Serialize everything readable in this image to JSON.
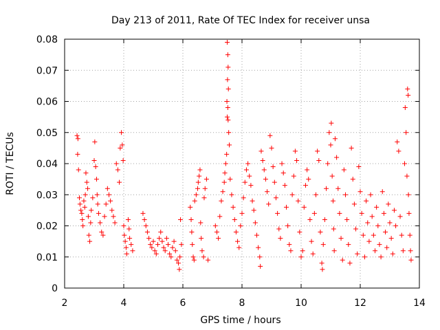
{
  "chart_data": {
    "type": "scatter",
    "title": "Day 213 of 2011, Rate Of TEC Index for receiver unsa",
    "xlabel": "GPS time / hours",
    "ylabel": "ROTI / TECUs",
    "xlim": [
      2,
      14
    ],
    "ylim": [
      0,
      0.08
    ],
    "xticks": [
      2,
      4,
      6,
      8,
      10,
      12,
      14
    ],
    "xtick_labels": [
      "2",
      "4",
      "6",
      "8",
      "10",
      "12",
      "14"
    ],
    "yticks": [
      0,
      0.01,
      0.02,
      0.03,
      0.04,
      0.05,
      0.06,
      0.07,
      0.08
    ],
    "ytick_labels": [
      "0",
      "0.01",
      "0.02",
      "0.03",
      "0.04",
      "0.05",
      "0.06",
      "0.07",
      "0.08"
    ],
    "grid": true,
    "marker": "+",
    "color": "#ff0000",
    "series": [
      {
        "name": "ROTI",
        "points": [
          [
            2.42,
            0.049
          ],
          [
            2.45,
            0.048
          ],
          [
            2.44,
            0.043
          ],
          [
            2.47,
            0.038
          ],
          [
            2.5,
            0.029
          ],
          [
            2.52,
            0.027
          ],
          [
            2.55,
            0.025
          ],
          [
            2.58,
            0.024
          ],
          [
            2.6,
            0.022
          ],
          [
            2.62,
            0.02
          ],
          [
            2.65,
            0.028
          ],
          [
            2.68,
            0.026
          ],
          [
            2.7,
            0.03
          ],
          [
            2.72,
            0.037
          ],
          [
            2.75,
            0.034
          ],
          [
            2.78,
            0.032
          ],
          [
            2.8,
            0.023
          ],
          [
            2.82,
            0.017
          ],
          [
            2.85,
            0.015
          ],
          [
            2.88,
            0.021
          ],
          [
            2.9,
            0.025
          ],
          [
            2.95,
            0.029
          ],
          [
            3.0,
            0.041
          ],
          [
            3.02,
            0.047
          ],
          [
            3.05,
            0.039
          ],
          [
            3.08,
            0.035
          ],
          [
            3.1,
            0.03
          ],
          [
            3.12,
            0.027
          ],
          [
            3.15,
            0.024
          ],
          [
            3.2,
            0.021
          ],
          [
            3.25,
            0.018
          ],
          [
            3.3,
            0.017
          ],
          [
            3.35,
            0.023
          ],
          [
            3.4,
            0.027
          ],
          [
            3.45,
            0.032
          ],
          [
            3.5,
            0.03
          ],
          [
            3.55,
            0.028
          ],
          [
            3.6,
            0.025
          ],
          [
            3.65,
            0.023
          ],
          [
            3.7,
            0.021
          ],
          [
            3.75,
            0.04
          ],
          [
            3.8,
            0.038
          ],
          [
            3.85,
            0.034
          ],
          [
            3.88,
            0.045
          ],
          [
            3.92,
            0.05
          ],
          [
            3.95,
            0.046
          ],
          [
            3.98,
            0.041
          ],
          [
            4.0,
            0.02
          ],
          [
            4.02,
            0.017
          ],
          [
            4.05,
            0.015
          ],
          [
            4.08,
            0.013
          ],
          [
            4.1,
            0.011
          ],
          [
            4.15,
            0.022
          ],
          [
            4.18,
            0.019
          ],
          [
            4.2,
            0.016
          ],
          [
            4.25,
            0.014
          ],
          [
            4.3,
            0.012
          ],
          [
            4.65,
            0.024
          ],
          [
            4.7,
            0.022
          ],
          [
            4.75,
            0.02
          ],
          [
            4.8,
            0.018
          ],
          [
            4.85,
            0.016
          ],
          [
            4.9,
            0.014
          ],
          [
            4.95,
            0.013
          ],
          [
            5.0,
            0.015
          ],
          [
            5.05,
            0.012
          ],
          [
            5.1,
            0.011
          ],
          [
            5.15,
            0.014
          ],
          [
            5.2,
            0.016
          ],
          [
            5.25,
            0.018
          ],
          [
            5.3,
            0.015
          ],
          [
            5.35,
            0.013
          ],
          [
            5.4,
            0.012
          ],
          [
            5.45,
            0.016
          ],
          [
            5.5,
            0.014
          ],
          [
            5.55,
            0.011
          ],
          [
            5.6,
            0.01
          ],
          [
            5.65,
            0.013
          ],
          [
            5.7,
            0.015
          ],
          [
            5.75,
            0.012
          ],
          [
            5.8,
            0.009
          ],
          [
            5.85,
            0.008
          ],
          [
            5.88,
            0.006
          ],
          [
            5.9,
            0.01
          ],
          [
            5.92,
            0.022
          ],
          [
            5.95,
            0.014
          ],
          [
            6.25,
            0.026
          ],
          [
            6.28,
            0.022
          ],
          [
            6.3,
            0.018
          ],
          [
            6.32,
            0.014
          ],
          [
            6.35,
            0.01
          ],
          [
            6.38,
            0.009
          ],
          [
            6.4,
            0.028
          ],
          [
            6.45,
            0.03
          ],
          [
            6.5,
            0.032
          ],
          [
            6.52,
            0.034
          ],
          [
            6.55,
            0.036
          ],
          [
            6.58,
            0.038
          ],
          [
            6.6,
            0.021
          ],
          [
            6.62,
            0.016
          ],
          [
            6.65,
            0.012
          ],
          [
            6.7,
            0.01
          ],
          [
            6.72,
            0.029
          ],
          [
            6.75,
            0.032
          ],
          [
            6.8,
            0.035
          ],
          [
            6.85,
            0.009
          ],
          [
            7.1,
            0.02
          ],
          [
            7.15,
            0.018
          ],
          [
            7.2,
            0.016
          ],
          [
            7.25,
            0.023
          ],
          [
            7.3,
            0.028
          ],
          [
            7.35,
            0.031
          ],
          [
            7.4,
            0.034
          ],
          [
            7.42,
            0.037
          ],
          [
            7.45,
            0.04
          ],
          [
            7.48,
            0.043
          ],
          [
            7.5,
            0.079
          ],
          [
            7.52,
            0.075
          ],
          [
            7.53,
            0.071
          ],
          [
            7.51,
            0.067
          ],
          [
            7.54,
            0.064
          ],
          [
            7.49,
            0.06
          ],
          [
            7.52,
            0.058
          ],
          [
            7.5,
            0.055
          ],
          [
            7.53,
            0.054
          ],
          [
            7.55,
            0.05
          ],
          [
            7.57,
            0.046
          ],
          [
            7.6,
            0.035
          ],
          [
            7.65,
            0.03
          ],
          [
            7.7,
            0.026
          ],
          [
            7.75,
            0.022
          ],
          [
            7.8,
            0.018
          ],
          [
            7.85,
            0.015
          ],
          [
            7.9,
            0.013
          ],
          [
            7.95,
            0.02
          ],
          [
            8.0,
            0.024
          ],
          [
            8.05,
            0.029
          ],
          [
            8.1,
            0.034
          ],
          [
            8.15,
            0.038
          ],
          [
            8.2,
            0.04
          ],
          [
            8.25,
            0.036
          ],
          [
            8.3,
            0.033
          ],
          [
            8.35,
            0.028
          ],
          [
            8.4,
            0.025
          ],
          [
            8.45,
            0.021
          ],
          [
            8.5,
            0.017
          ],
          [
            8.55,
            0.013
          ],
          [
            8.6,
            0.01
          ],
          [
            8.62,
            0.007
          ],
          [
            8.65,
            0.044
          ],
          [
            8.7,
            0.041
          ],
          [
            8.75,
            0.038
          ],
          [
            8.8,
            0.035
          ],
          [
            8.85,
            0.031
          ],
          [
            8.9,
            0.027
          ],
          [
            8.95,
            0.049
          ],
          [
            9.0,
            0.045
          ],
          [
            9.05,
            0.039
          ],
          [
            9.1,
            0.034
          ],
          [
            9.15,
            0.029
          ],
          [
            9.2,
            0.024
          ],
          [
            9.25,
            0.019
          ],
          [
            9.3,
            0.016
          ],
          [
            9.35,
            0.04
          ],
          [
            9.4,
            0.037
          ],
          [
            9.45,
            0.033
          ],
          [
            9.5,
            0.026
          ],
          [
            9.55,
            0.02
          ],
          [
            9.6,
            0.014
          ],
          [
            9.65,
            0.012
          ],
          [
            9.7,
            0.03
          ],
          [
            9.75,
            0.036
          ],
          [
            9.8,
            0.044
          ],
          [
            9.85,
            0.041
          ],
          [
            9.9,
            0.028
          ],
          [
            9.95,
            0.018
          ],
          [
            10.0,
            0.01
          ],
          [
            10.05,
            0.012
          ],
          [
            10.1,
            0.026
          ],
          [
            10.15,
            0.033
          ],
          [
            10.2,
            0.038
          ],
          [
            10.25,
            0.035
          ],
          [
            10.3,
            0.022
          ],
          [
            10.35,
            0.015
          ],
          [
            10.4,
            0.011
          ],
          [
            10.45,
            0.024
          ],
          [
            10.5,
            0.03
          ],
          [
            10.55,
            0.044
          ],
          [
            10.6,
            0.041
          ],
          [
            10.65,
            0.018
          ],
          [
            10.7,
            0.008
          ],
          [
            10.72,
            0.006
          ],
          [
            10.75,
            0.014
          ],
          [
            10.8,
            0.022
          ],
          [
            10.85,
            0.032
          ],
          [
            10.9,
            0.04
          ],
          [
            10.95,
            0.05
          ],
          [
            11.0,
            0.046
          ],
          [
            11.02,
            0.053
          ],
          [
            11.05,
            0.036
          ],
          [
            11.08,
            0.028
          ],
          [
            11.1,
            0.019
          ],
          [
            11.12,
            0.012
          ],
          [
            11.15,
            0.048
          ],
          [
            11.2,
            0.042
          ],
          [
            11.25,
            0.032
          ],
          [
            11.3,
            0.024
          ],
          [
            11.35,
            0.016
          ],
          [
            11.4,
            0.009
          ],
          [
            11.45,
            0.038
          ],
          [
            11.5,
            0.03
          ],
          [
            11.55,
            0.022
          ],
          [
            11.6,
            0.014
          ],
          [
            11.65,
            0.008
          ],
          [
            11.7,
            0.045
          ],
          [
            11.75,
            0.035
          ],
          [
            11.8,
            0.027
          ],
          [
            11.85,
            0.019
          ],
          [
            11.9,
            0.011
          ],
          [
            11.95,
            0.039
          ],
          [
            12.0,
            0.031
          ],
          [
            12.05,
            0.024
          ],
          [
            12.1,
            0.017
          ],
          [
            12.15,
            0.01
          ],
          [
            12.2,
            0.028
          ],
          [
            12.25,
            0.021
          ],
          [
            12.3,
            0.015
          ],
          [
            12.35,
            0.03
          ],
          [
            12.4,
            0.023
          ],
          [
            12.45,
            0.017
          ],
          [
            12.5,
            0.012
          ],
          [
            12.55,
            0.026
          ],
          [
            12.6,
            0.02
          ],
          [
            12.65,
            0.014
          ],
          [
            12.7,
            0.01
          ],
          [
            12.75,
            0.031
          ],
          [
            12.8,
            0.024
          ],
          [
            12.85,
            0.018
          ],
          [
            12.9,
            0.013
          ],
          [
            12.95,
            0.027
          ],
          [
            13.0,
            0.021
          ],
          [
            13.05,
            0.016
          ],
          [
            13.1,
            0.011
          ],
          [
            13.15,
            0.025
          ],
          [
            13.2,
            0.02
          ],
          [
            13.25,
            0.047
          ],
          [
            13.3,
            0.044
          ],
          [
            13.35,
            0.023
          ],
          [
            13.4,
            0.017
          ],
          [
            13.45,
            0.012
          ],
          [
            13.5,
            0.04
          ],
          [
            13.52,
            0.058
          ],
          [
            13.55,
            0.05
          ],
          [
            13.58,
            0.036
          ],
          [
            13.6,
            0.064
          ],
          [
            13.62,
            0.062
          ],
          [
            13.63,
            0.03
          ],
          [
            13.65,
            0.024
          ],
          [
            13.68,
            0.017
          ],
          [
            13.7,
            0.012
          ],
          [
            13.72,
            0.009
          ]
        ]
      }
    ]
  }
}
